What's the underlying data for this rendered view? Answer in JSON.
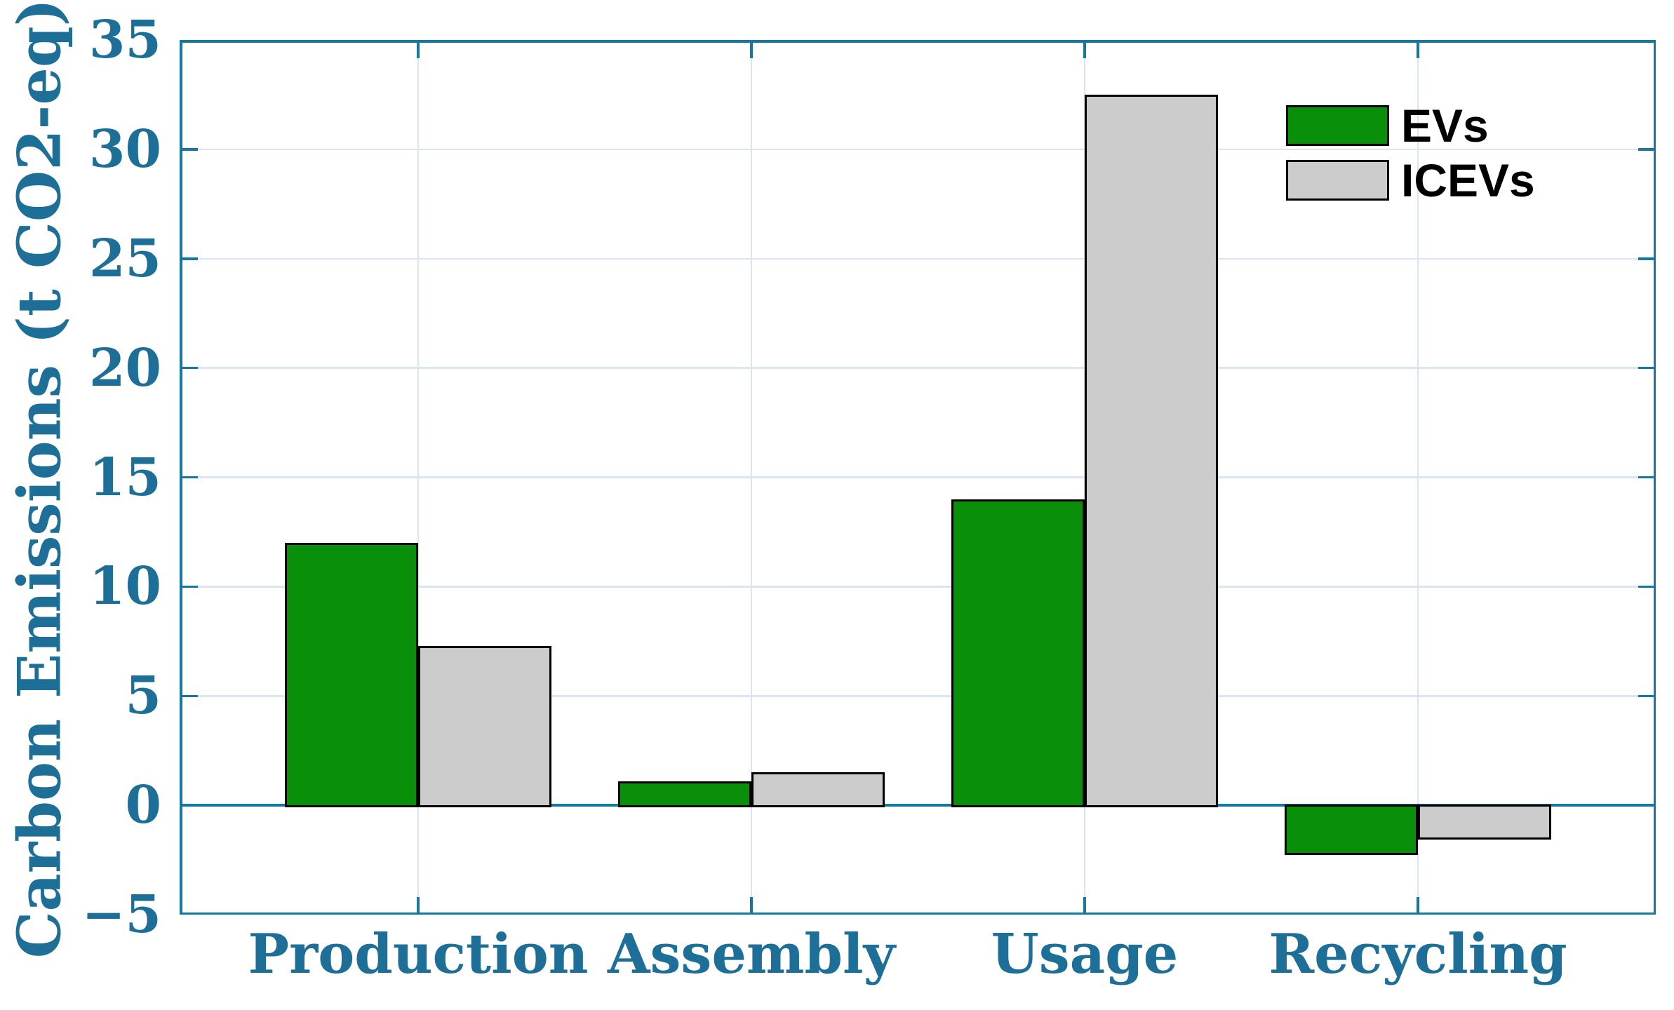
{
  "chart_data": {
    "type": "bar",
    "title": "",
    "xlabel": "",
    "ylabel": "Carbon Emissions (t CO2-eq)",
    "categories": [
      "Production",
      "Assembly",
      "Usage",
      "Recycling"
    ],
    "series": [
      {
        "name": "EVs",
        "color": "#0a8f0a",
        "values": [
          12,
          1.1,
          14,
          -2.2
        ]
      },
      {
        "name": "ICEVs",
        "color": "#cccccc",
        "values": [
          7.3,
          1.5,
          32.5,
          -1.5
        ]
      }
    ],
    "ylim": [
      -5,
      35
    ],
    "yticks": [
      35,
      30,
      25,
      20,
      15,
      10,
      5,
      0,
      -5
    ],
    "grid": true,
    "grid_axes": "both",
    "legend_position": "upper-right",
    "styles": {
      "axis_color": "#15789f",
      "text_color": "#1e6f97",
      "grid_color": "#d9e6f1",
      "bar_edge_color": "#000000",
      "legend_text_color": "#000000",
      "background": "#ffffff"
    }
  }
}
